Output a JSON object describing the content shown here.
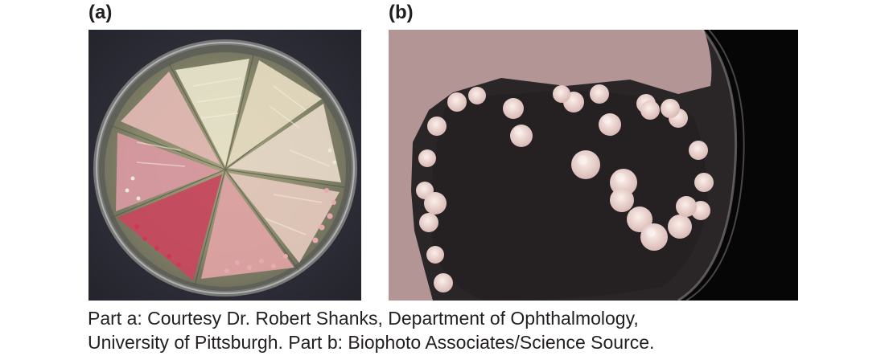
{
  "panels": {
    "a": {
      "label": "(a)",
      "photo": "petri-dish-radial-streaks"
    },
    "b": {
      "label": "(b)",
      "photo": "petri-dish-white-colonies"
    }
  },
  "caption": {
    "line1": "Part a: Courtesy Dr. Robert Shanks, Department of Ophthalmology,",
    "line2": "University of Pittsburgh. Part b: Biophoto Associates/Science Source."
  },
  "colors": {
    "background": "#ffffff",
    "text": "#231f20",
    "photo_a_backdrop": "#2c2d36",
    "agar_a": "#8a8a68",
    "streak_cream": "#e8e2c6",
    "streak_pink": "#d77b8a",
    "streak_red": "#c13b55",
    "photo_b_backdrop": "#070707",
    "agar_b": "#262224",
    "colony_b": "#eed7d3"
  }
}
